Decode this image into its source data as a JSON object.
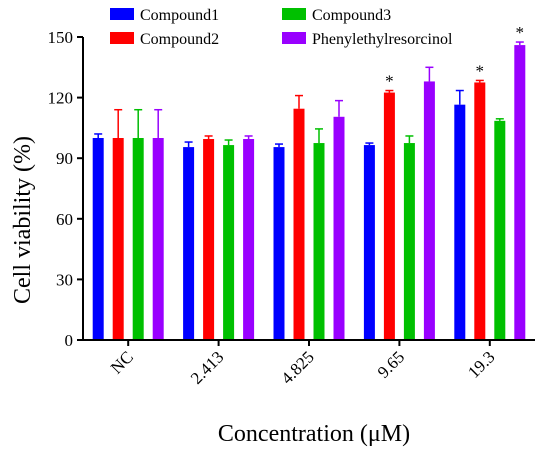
{
  "chart_data": {
    "type": "bar",
    "xlabel": "Concentration (μM)",
    "ylabel": "Cell viability (%)",
    "ylim": [
      0,
      150
    ],
    "yticks": [
      0,
      30,
      60,
      90,
      120,
      150
    ],
    "categories": [
      "NC",
      "2.413",
      "4.825",
      "9.65",
      "19.3"
    ],
    "legend_position": "top",
    "series": [
      {
        "name": "Compound1",
        "color": "#0000ff",
        "values": [
          100,
          95.5,
          95.5,
          96.5,
          116.5
        ],
        "errors": [
          2,
          2.5,
          1.5,
          1,
          7
        ]
      },
      {
        "name": "Compound2",
        "color": "#ff0000",
        "values": [
          100,
          99.5,
          114.5,
          122.5,
          127.5
        ],
        "errors": [
          14,
          1.5,
          6.5,
          1,
          1
        ]
      },
      {
        "name": "Compound3",
        "color": "#00c000",
        "values": [
          100,
          96.5,
          97.5,
          97.5,
          108.5
        ],
        "errors": [
          14,
          2.5,
          7,
          3.5,
          1
        ]
      },
      {
        "name": "Phenylethylresorcinol",
        "color": "#9900ff",
        "values": [
          100,
          99.5,
          110.5,
          128,
          146
        ],
        "errors": [
          14,
          1.5,
          8,
          7,
          1.5
        ]
      }
    ],
    "annotations": [
      {
        "text": "*",
        "category": "9.65",
        "series": "Compound2"
      },
      {
        "text": "*",
        "category": "19.3",
        "series": "Compound2"
      },
      {
        "text": "*",
        "category": "19.3",
        "series": "Phenylethylresorcinol"
      }
    ]
  }
}
